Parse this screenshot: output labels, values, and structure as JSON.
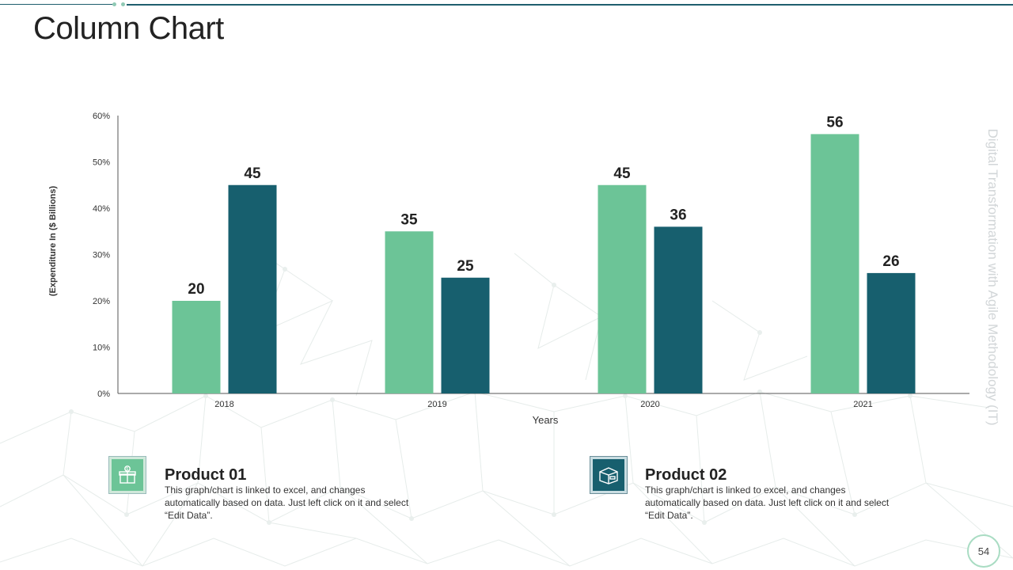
{
  "slide": {
    "title": "Column Chart",
    "side_text": "Digital Transformation with Agile Methodology (IT)",
    "page_number": "54"
  },
  "colors": {
    "product1": "#6cc497",
    "product2": "#175f6e",
    "accent_line": "#1f5e6e"
  },
  "legend": [
    {
      "title": "Product 01",
      "description": "This graph/chart is linked to excel, and changes automatically based on data. Just left click on it and select “Edit Data”.",
      "icon": "gift-box-icon"
    },
    {
      "title": "Product 02",
      "description": "This graph/chart is linked to excel, and changes automatically based on data. Just left click on it and select “Edit Data”.",
      "icon": "delivery-box-icon"
    }
  ],
  "chart_data": {
    "type": "bar",
    "categories": [
      "2018",
      "2019",
      "2020",
      "2021"
    ],
    "series": [
      {
        "name": "Product 01",
        "values": [
          20,
          35,
          45,
          56
        ]
      },
      {
        "name": "Product 02",
        "values": [
          45,
          25,
          36,
          26
        ]
      }
    ],
    "xlabel": "Years",
    "ylabel": "(Expenditure In ($ Billions)",
    "ylim": [
      0,
      60
    ],
    "yticks": [
      "0%",
      "10%",
      "20%",
      "30%",
      "40%",
      "50%",
      "60%"
    ],
    "grid": false
  }
}
